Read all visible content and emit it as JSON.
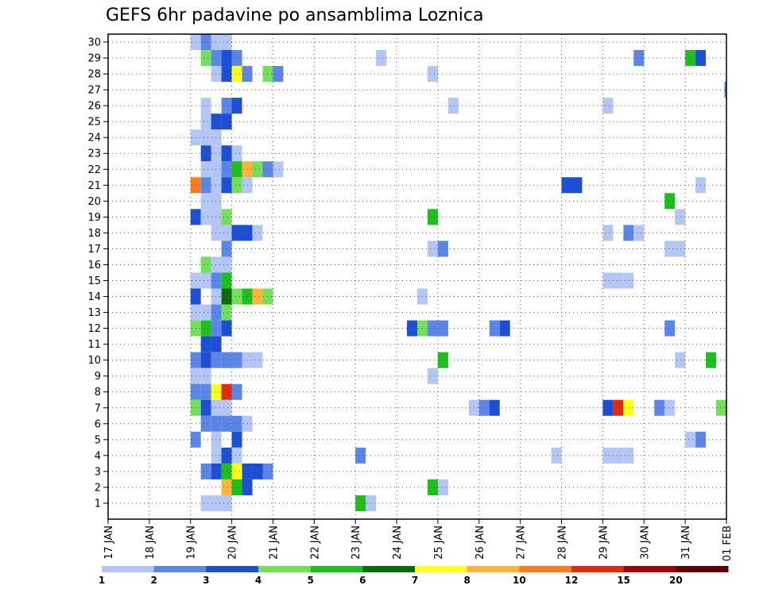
{
  "chart_data": {
    "type": "heatmap",
    "title": "GEFS 6hr padavine po ansamblima Loznica",
    "xlabel": "",
    "ylabel": "",
    "x_ticks": [
      "17 JAN",
      "18 JAN",
      "19 JAN",
      "20 JAN",
      "21 JAN",
      "22 JAN",
      "23 JAN",
      "24 JAN",
      "25 JAN",
      "26 JAN",
      "27 JAN",
      "28 JAN",
      "29 JAN",
      "30 JAN",
      "31 JAN",
      "01 FEB"
    ],
    "xlim_days": [
      0,
      15
    ],
    "y_ticks": [
      "1",
      "2",
      "3",
      "4",
      "5",
      "6",
      "7",
      "8",
      "9",
      "10",
      "11",
      "12",
      "13",
      "14",
      "15",
      "16",
      "17",
      "18",
      "19",
      "20",
      "21",
      "22",
      "23",
      "24",
      "25",
      "26",
      "27",
      "28",
      "29",
      "30"
    ],
    "ylim": [
      0,
      30
    ],
    "grid": true,
    "colorbar": {
      "labels": [
        "1",
        "2",
        "3",
        "4",
        "5",
        "6",
        "7",
        "8",
        "10",
        "12",
        "15",
        "20"
      ],
      "colors": [
        "#b3c6f5",
        "#5a86e8",
        "#1c4fd6",
        "#73e05c",
        "#1cbf1c",
        "#0a6b0a",
        "#ffff1a",
        "#ffb33a",
        "#ff7a1a",
        "#e02b10",
        "#a00000",
        "#5c0000"
      ]
    },
    "cells_note": "each cell: [day offset from 17 JAN at 00z, member row, bin index into colorbar]",
    "cells": [
      [
        2.0,
        30,
        0
      ],
      [
        2.25,
        30,
        1
      ],
      [
        2.5,
        30,
        0
      ],
      [
        2.75,
        30,
        0
      ],
      [
        2.25,
        29,
        3
      ],
      [
        2.5,
        29,
        1
      ],
      [
        2.75,
        29,
        2
      ],
      [
        3.0,
        29,
        1
      ],
      [
        6.5,
        29,
        0
      ],
      [
        12.75,
        29,
        1
      ],
      [
        14.0,
        29,
        4
      ],
      [
        14.25,
        29,
        2
      ],
      [
        2.5,
        28,
        0
      ],
      [
        2.75,
        28,
        2
      ],
      [
        3.0,
        28,
        6
      ],
      [
        3.25,
        28,
        1
      ],
      [
        3.75,
        28,
        3
      ],
      [
        4.0,
        28,
        1
      ],
      [
        7.75,
        28,
        0
      ],
      [
        14.95,
        27,
        1
      ],
      [
        2.25,
        26,
        0
      ],
      [
        2.75,
        26,
        1
      ],
      [
        3.0,
        26,
        2
      ],
      [
        8.25,
        26,
        0
      ],
      [
        12.0,
        26,
        0
      ],
      [
        2.25,
        25,
        0
      ],
      [
        2.5,
        25,
        2
      ],
      [
        2.75,
        25,
        2
      ],
      [
        2.0,
        24,
        0
      ],
      [
        2.25,
        24,
        0
      ],
      [
        2.5,
        24,
        0
      ],
      [
        2.25,
        23,
        2
      ],
      [
        2.5,
        23,
        0
      ],
      [
        2.75,
        23,
        2
      ],
      [
        3.0,
        23,
        0
      ],
      [
        2.25,
        22,
        0
      ],
      [
        2.5,
        22,
        0
      ],
      [
        2.75,
        22,
        1
      ],
      [
        3.0,
        22,
        4
      ],
      [
        3.25,
        22,
        7
      ],
      [
        3.5,
        22,
        3
      ],
      [
        3.75,
        22,
        1
      ],
      [
        4.0,
        22,
        0
      ],
      [
        2.0,
        21,
        8
      ],
      [
        2.25,
        21,
        1
      ],
      [
        2.5,
        21,
        0
      ],
      [
        2.75,
        21,
        2
      ],
      [
        3.0,
        21,
        3
      ],
      [
        3.25,
        21,
        0
      ],
      [
        11.0,
        21,
        2
      ],
      [
        11.25,
        21,
        2
      ],
      [
        14.25,
        21,
        0
      ],
      [
        2.25,
        20,
        0
      ],
      [
        2.5,
        20,
        0
      ],
      [
        13.5,
        20,
        4
      ],
      [
        2.0,
        19,
        2
      ],
      [
        2.25,
        19,
        0
      ],
      [
        2.5,
        19,
        0
      ],
      [
        2.75,
        19,
        3
      ],
      [
        7.75,
        19,
        4
      ],
      [
        13.75,
        19,
        0
      ],
      [
        2.5,
        18,
        0
      ],
      [
        2.75,
        18,
        0
      ],
      [
        3.0,
        18,
        2
      ],
      [
        3.25,
        18,
        2
      ],
      [
        3.5,
        18,
        0
      ],
      [
        12.0,
        18,
        0
      ],
      [
        12.5,
        18,
        1
      ],
      [
        12.75,
        18,
        0
      ],
      [
        2.75,
        17,
        1
      ],
      [
        7.75,
        17,
        0
      ],
      [
        8.0,
        17,
        1
      ],
      [
        13.5,
        17,
        0
      ],
      [
        13.75,
        17,
        0
      ],
      [
        2.25,
        16,
        3
      ],
      [
        2.5,
        16,
        0
      ],
      [
        2.75,
        16,
        0
      ],
      [
        2.0,
        15,
        0
      ],
      [
        2.25,
        15,
        0
      ],
      [
        2.5,
        15,
        1
      ],
      [
        2.75,
        15,
        4
      ],
      [
        12.0,
        15,
        0
      ],
      [
        12.25,
        15,
        0
      ],
      [
        12.5,
        15,
        0
      ],
      [
        2.0,
        14,
        2
      ],
      [
        2.5,
        14,
        0
      ],
      [
        2.75,
        14,
        5
      ],
      [
        3.0,
        14,
        3
      ],
      [
        3.25,
        14,
        4
      ],
      [
        3.5,
        14,
        7
      ],
      [
        3.75,
        14,
        3
      ],
      [
        7.5,
        14,
        0
      ],
      [
        2.0,
        13,
        0
      ],
      [
        2.25,
        13,
        0
      ],
      [
        2.5,
        13,
        1
      ],
      [
        2.75,
        13,
        3
      ],
      [
        2.0,
        12,
        3
      ],
      [
        2.25,
        12,
        4
      ],
      [
        2.5,
        12,
        1
      ],
      [
        2.75,
        12,
        2
      ],
      [
        7.25,
        12,
        2
      ],
      [
        7.5,
        12,
        3
      ],
      [
        7.75,
        12,
        1
      ],
      [
        8.0,
        12,
        1
      ],
      [
        9.25,
        12,
        1
      ],
      [
        9.5,
        12,
        2
      ],
      [
        13.5,
        12,
        1
      ],
      [
        2.25,
        11,
        2
      ],
      [
        2.5,
        11,
        2
      ],
      [
        2.0,
        10,
        1
      ],
      [
        2.25,
        10,
        2
      ],
      [
        2.5,
        10,
        1
      ],
      [
        2.75,
        10,
        1
      ],
      [
        3.0,
        10,
        1
      ],
      [
        3.25,
        10,
        0
      ],
      [
        3.5,
        10,
        0
      ],
      [
        8.0,
        10,
        4
      ],
      [
        13.75,
        10,
        0
      ],
      [
        14.5,
        10,
        4
      ],
      [
        2.0,
        9,
        0
      ],
      [
        2.25,
        9,
        0
      ],
      [
        7.75,
        9,
        0
      ],
      [
        2.0,
        8,
        1
      ],
      [
        2.25,
        8,
        1
      ],
      [
        2.5,
        8,
        6
      ],
      [
        2.75,
        8,
        9
      ],
      [
        3.0,
        8,
        1
      ],
      [
        2.0,
        7,
        3
      ],
      [
        2.25,
        7,
        2
      ],
      [
        2.5,
        7,
        0
      ],
      [
        2.75,
        7,
        0
      ],
      [
        8.75,
        7,
        0
      ],
      [
        9.0,
        7,
        1
      ],
      [
        9.25,
        7,
        2
      ],
      [
        12.0,
        7,
        2
      ],
      [
        12.25,
        7,
        9
      ],
      [
        12.5,
        7,
        6
      ],
      [
        13.25,
        7,
        1
      ],
      [
        13.5,
        7,
        0
      ],
      [
        14.75,
        7,
        3
      ],
      [
        2.25,
        6,
        1
      ],
      [
        2.5,
        6,
        1
      ],
      [
        2.75,
        6,
        1
      ],
      [
        3.0,
        6,
        1
      ],
      [
        3.25,
        6,
        0
      ],
      [
        2.0,
        5,
        1
      ],
      [
        2.5,
        5,
        0
      ],
      [
        3.0,
        5,
        2
      ],
      [
        14.0,
        5,
        0
      ],
      [
        14.25,
        5,
        1
      ],
      [
        2.5,
        4,
        0
      ],
      [
        2.75,
        4,
        2
      ],
      [
        3.0,
        4,
        0
      ],
      [
        6.0,
        4,
        1
      ],
      [
        10.75,
        4,
        0
      ],
      [
        12.0,
        4,
        0
      ],
      [
        12.25,
        4,
        0
      ],
      [
        12.5,
        4,
        0
      ],
      [
        2.25,
        3,
        1
      ],
      [
        2.5,
        3,
        2
      ],
      [
        2.75,
        3,
        4
      ],
      [
        3.0,
        3,
        6
      ],
      [
        3.25,
        3,
        2
      ],
      [
        3.5,
        3,
        2
      ],
      [
        3.75,
        3,
        1
      ],
      [
        2.75,
        2,
        7
      ],
      [
        3.0,
        2,
        4
      ],
      [
        3.25,
        2,
        2
      ],
      [
        7.75,
        2,
        4
      ],
      [
        8.0,
        2,
        0
      ],
      [
        2.25,
        1,
        0
      ],
      [
        2.5,
        1,
        0
      ],
      [
        2.75,
        1,
        0
      ],
      [
        6.0,
        1,
        4
      ],
      [
        6.25,
        1,
        0
      ]
    ]
  }
}
